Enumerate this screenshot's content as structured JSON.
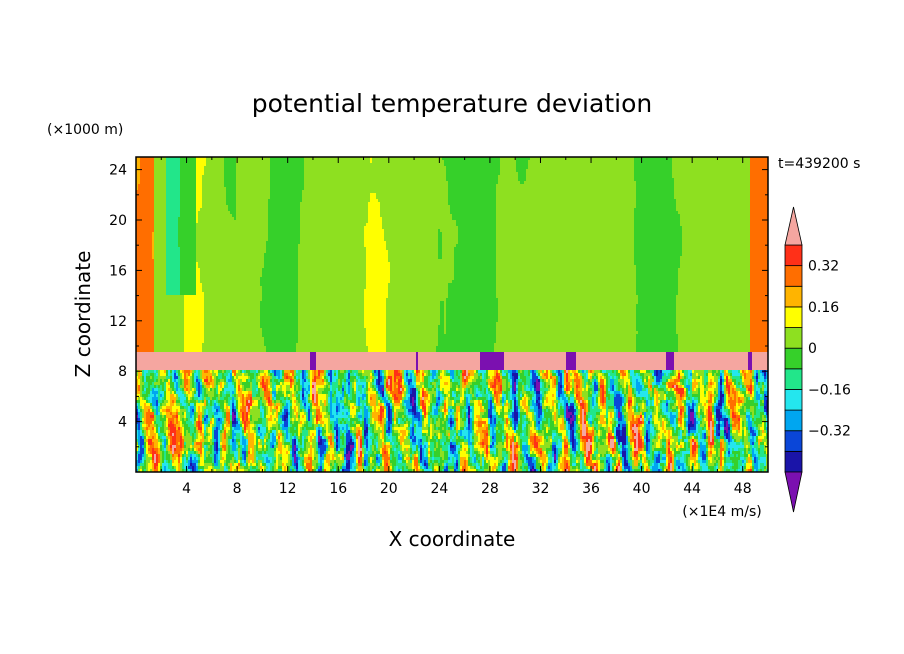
{
  "chart_data": {
    "type": "heatmap",
    "title": "potential temperature deviation",
    "xlabel": "X coordinate",
    "ylabel": "Z coordinate",
    "x_unit": "(×1E4 m/s)",
    "y_unit": "(×1000 m)",
    "time_label": "t=439200 s",
    "xlim": [
      0,
      50
    ],
    "ylim": [
      0,
      25
    ],
    "xticks": [
      4,
      8,
      12,
      16,
      20,
      24,
      28,
      32,
      36,
      40,
      44,
      48
    ],
    "yticks": [
      4,
      8,
      12,
      16,
      20,
      24
    ],
    "colorbar": {
      "levels": [
        -0.48,
        -0.4,
        -0.32,
        -0.24,
        -0.16,
        -0.08,
        0,
        0.08,
        0.16,
        0.24,
        0.32,
        0.4
      ],
      "colors": [
        "#7b10b0",
        "#1a14a8",
        "#0a46d8",
        "#00a6f0",
        "#24e6ee",
        "#22e68a",
        "#36d02a",
        "#8ee020",
        "#ffff00",
        "#ffb400",
        "#ff6e00",
        "#ff3018",
        "#f5a6a0"
      ],
      "tick_labels": [
        "0.32",
        "0.16",
        "0",
        "-0.16",
        "-0.32"
      ],
      "tick_values": [
        0.32,
        0.16,
        0,
        -0.16,
        -0.32
      ],
      "extend": "both"
    },
    "layers": [
      {
        "z_range": [
          9.6,
          25
        ],
        "description_values": [
          -0.08,
          0.16
        ]
      },
      {
        "z_range": [
          8.0,
          9.6
        ],
        "description_values": [
          0.4,
          -0.48
        ]
      },
      {
        "z_range": [
          0,
          8.0
        ],
        "description_values": [
          -0.48,
          0.48
        ]
      }
    ]
  }
}
